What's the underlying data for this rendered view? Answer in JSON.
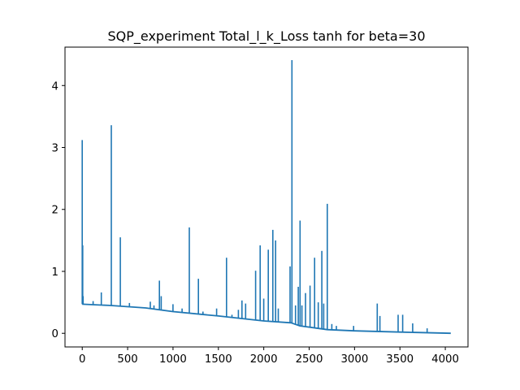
{
  "chart_data": {
    "type": "line",
    "title": "SQP_experiment Total_l_k_Loss tanh for beta=30",
    "xlabel": "",
    "ylabel": "",
    "xlim": [
      -190,
      4250
    ],
    "ylim": [
      -0.22,
      4.62
    ],
    "xticks": [
      0,
      500,
      1000,
      1500,
      2000,
      2500,
      3000,
      3500,
      4000
    ],
    "yticks": [
      0,
      1,
      2,
      3,
      4
    ],
    "grid": false,
    "legend": "none",
    "series": [
      {
        "color": "#1f77b4",
        "baseline": [
          [
            0,
            0.47
          ],
          [
            300,
            0.45
          ],
          [
            700,
            0.41
          ],
          [
            1000,
            0.35
          ],
          [
            1500,
            0.28
          ],
          [
            2000,
            0.2
          ],
          [
            2300,
            0.17
          ],
          [
            2400,
            0.12
          ],
          [
            2700,
            0.06
          ],
          [
            3000,
            0.04
          ],
          [
            3500,
            0.02
          ],
          [
            4060,
            0.0
          ]
        ],
        "spikes": [
          [
            0,
            3.12
          ],
          [
            5,
            1.42
          ],
          [
            10,
            0.6
          ],
          [
            120,
            0.52
          ],
          [
            210,
            0.66
          ],
          [
            320,
            3.36
          ],
          [
            420,
            1.55
          ],
          [
            520,
            0.49
          ],
          [
            750,
            0.51
          ],
          [
            790,
            0.45
          ],
          [
            850,
            0.85
          ],
          [
            870,
            0.6
          ],
          [
            1000,
            0.47
          ],
          [
            1100,
            0.4
          ],
          [
            1180,
            1.71
          ],
          [
            1280,
            0.88
          ],
          [
            1330,
            0.35
          ],
          [
            1480,
            0.4
          ],
          [
            1590,
            1.22
          ],
          [
            1650,
            0.3
          ],
          [
            1720,
            0.38
          ],
          [
            1760,
            0.53
          ],
          [
            1800,
            0.48
          ],
          [
            1910,
            1.01
          ],
          [
            1960,
            1.42
          ],
          [
            2000,
            0.56
          ],
          [
            2050,
            1.35
          ],
          [
            2100,
            1.67
          ],
          [
            2130,
            1.5
          ],
          [
            2160,
            0.4
          ],
          [
            2290,
            1.08
          ],
          [
            2310,
            4.41
          ],
          [
            2350,
            0.45
          ],
          [
            2380,
            0.75
          ],
          [
            2400,
            1.82
          ],
          [
            2420,
            0.45
          ],
          [
            2460,
            0.65
          ],
          [
            2510,
            0.77
          ],
          [
            2560,
            1.22
          ],
          [
            2600,
            0.5
          ],
          [
            2640,
            1.33
          ],
          [
            2660,
            0.48
          ],
          [
            2700,
            2.09
          ],
          [
            2750,
            0.15
          ],
          [
            2800,
            0.12
          ],
          [
            2990,
            0.12
          ],
          [
            3250,
            0.48
          ],
          [
            3280,
            0.28
          ],
          [
            3480,
            0.3
          ],
          [
            3530,
            0.3
          ],
          [
            3640,
            0.16
          ],
          [
            3800,
            0.08
          ]
        ]
      }
    ]
  }
}
